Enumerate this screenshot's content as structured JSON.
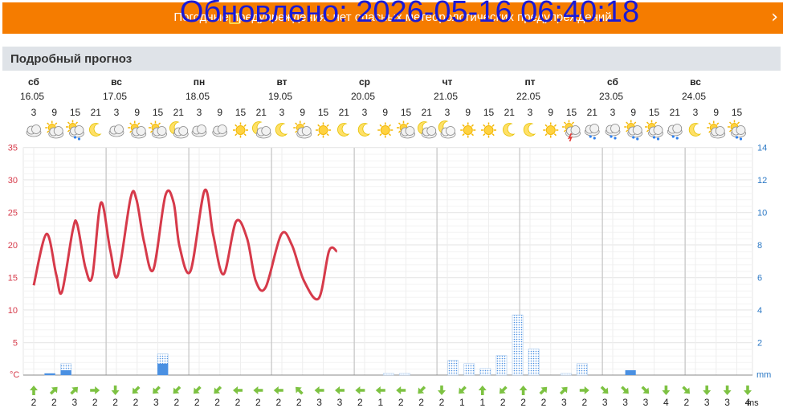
{
  "banner": {
    "text": "Погодные предупреждения: нет опасных метеорологических предупреждений",
    "overlay": "Обновлено: 2026-05-16 06:40:18",
    "colors": {
      "background": "#f57c00",
      "overlay_text": "#1a1ad6"
    }
  },
  "section": {
    "title": "Подробный прогноз"
  },
  "chart_data": {
    "type": "line",
    "days": [
      {
        "weekday": "сб",
        "date": "16.05"
      },
      {
        "weekday": "вс",
        "date": "17.05"
      },
      {
        "weekday": "пн",
        "date": "18.05"
      },
      {
        "weekday": "вт",
        "date": "19.05"
      },
      {
        "weekday": "ср",
        "date": "20.05"
      },
      {
        "weekday": "чт",
        "date": "21.05"
      },
      {
        "weekday": "пт",
        "date": "22.05"
      },
      {
        "weekday": "сб",
        "date": "23.05"
      },
      {
        "weekday": "вс",
        "date": "24.05"
      }
    ],
    "hours": [
      "3",
      "9",
      "15",
      "21",
      "3",
      "9",
      "15",
      "21",
      "3",
      "9",
      "15",
      "21",
      "3",
      "9",
      "15",
      "21",
      "3",
      "9",
      "15",
      "21",
      "3",
      "9",
      "15",
      "21",
      "3",
      "9",
      "15",
      "21",
      "3",
      "9",
      "15",
      "21",
      "3",
      "9",
      "15"
    ],
    "icons": [
      "cloudy",
      "partly-cloudy",
      "partly-cloudy-rain",
      "moon",
      "cloudy",
      "partly-cloudy",
      "partly-cloudy",
      "partly-cloudy-night",
      "cloudy",
      "cloudy",
      "sun",
      "partly-cloudy-night",
      "moon",
      "partly-cloudy",
      "sun",
      "moon",
      "moon",
      "sun",
      "partly-cloudy",
      "partly-cloudy-night",
      "cloudy-night",
      "sun",
      "sun",
      "moon",
      "moon",
      "sun",
      "thunderstorm",
      "cloudy-rain",
      "cloudy-rain",
      "partly-cloudy-rain",
      "partly-cloudy-rain",
      "cloudy-rain",
      "moon",
      "partly-cloudy",
      "partly-cloudy-rain"
    ],
    "temperature": {
      "name": "Температура",
      "unit": "°C",
      "color": "#d63a4a",
      "ylim": [
        0,
        35
      ],
      "yticks": [
        35,
        30,
        25,
        20,
        15,
        10,
        5
      ],
      "values": [
        13.8,
        21.7,
        15.5,
        12.8,
        22.2,
        23.2,
        16.5,
        15.2,
        26.5,
        19.2,
        15.3,
        27.2,
        27.0,
        20.5,
        16.2,
        27.6,
        26.5,
        19.8,
        16.0,
        28.4,
        21.5,
        15.5,
        23.6,
        21.0,
        14.5,
        13.5,
        21.6,
        20.0,
        14.5,
        11.8,
        19.1,
        19.0
      ],
      "x_hours": [
        0,
        3.7,
        6.5,
        8.2,
        11.3,
        12.6,
        15,
        17,
        19.5,
        22.2,
        24.4,
        28.1,
        29.8,
        32,
        34.7,
        38.2,
        40.6,
        42.3,
        45.5,
        49.6,
        52.1,
        55.1,
        58.7,
        61.9,
        64.4,
        67.3,
        71.8,
        74.9,
        78.4,
        82.7,
        85.7,
        88
      ]
    },
    "precipitation": {
      "name": "Осадки",
      "unit": "mm",
      "color_actual": "#4a90e2",
      "color_probable": "#4a90e2",
      "ylim": [
        0,
        14
      ],
      "yticks": [
        14,
        12,
        10,
        8,
        6,
        4,
        2
      ],
      "values": [
        0,
        0.1,
        0.3,
        0,
        0,
        0,
        0,
        0,
        0.7,
        0,
        0,
        0,
        0,
        0,
        0,
        0,
        0,
        0,
        0,
        0,
        0,
        0,
        0,
        0,
        0,
        0,
        0,
        0,
        0,
        0,
        0,
        0,
        0,
        0,
        0,
        0,
        0,
        0.3,
        0,
        0,
        0,
        0,
        0,
        0
      ],
      "probable": [
        0,
        0.1,
        0.7,
        0,
        0,
        0,
        0,
        0,
        1.3,
        0,
        0,
        0,
        0,
        0,
        0,
        0,
        0,
        0,
        0,
        0,
        0,
        0,
        0.1,
        0.1,
        0,
        0,
        0.9,
        0.7,
        0.4,
        1.2,
        3.7,
        1.6,
        0,
        0.1,
        0.7,
        0,
        0,
        0,
        0,
        0,
        0,
        0,
        0,
        0
      ]
    },
    "wind": {
      "unit": "ms",
      "color": "#7dc242",
      "speeds": [
        "2",
        "2",
        "3",
        "2",
        "2",
        "2",
        "3",
        "2",
        "2",
        "2",
        "2",
        "2",
        "2",
        "2",
        "3",
        "3",
        "2",
        "1",
        "2",
        "2",
        "2",
        "1",
        "1",
        "2",
        "2",
        "2",
        "3",
        "2",
        "3",
        "3",
        "3",
        "4",
        "2",
        "3",
        "3",
        "4"
      ],
      "directions_deg": [
        0,
        45,
        45,
        90,
        180,
        225,
        225,
        225,
        225,
        225,
        270,
        270,
        270,
        315,
        270,
        270,
        270,
        270,
        270,
        225,
        180,
        225,
        0,
        225,
        0,
        45,
        45,
        90,
        135,
        135,
        135,
        180,
        135,
        180,
        180,
        180
      ]
    },
    "grid": true
  }
}
